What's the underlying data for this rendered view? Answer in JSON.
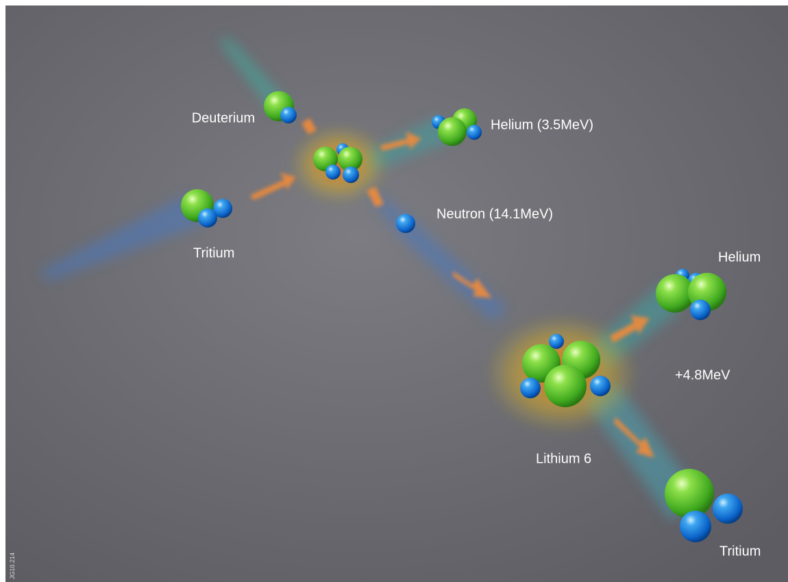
{
  "labels": [
    "Deuterium",
    "Helium (3.5MeV)",
    "Tritium",
    "Neutron (14.1MeV)",
    "Helium",
    "+4.8MeV",
    "Lithium 6",
    "Tritium"
  ],
  "image_code": "JG10.214"
}
